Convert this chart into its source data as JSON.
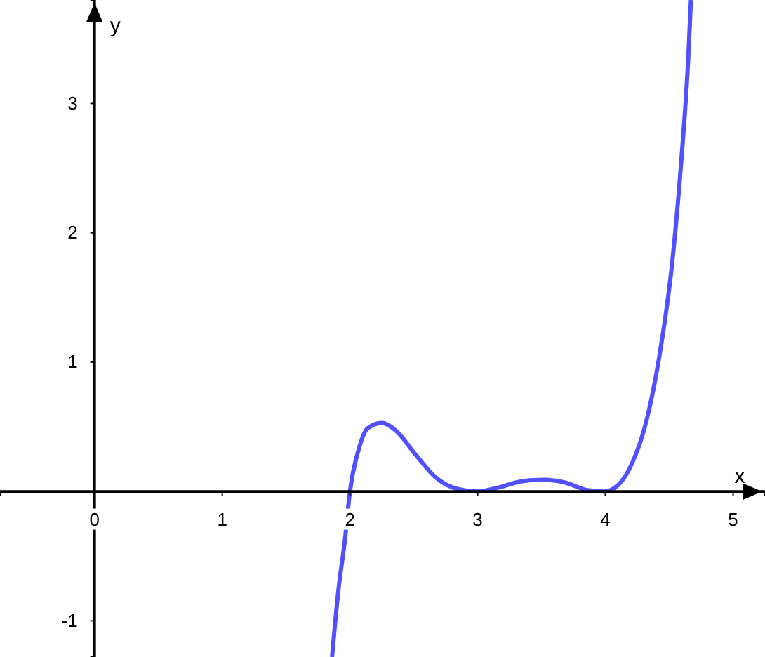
{
  "chart_data": {
    "type": "line",
    "xlabel": "x",
    "ylabel": "y",
    "xlim": [
      -0.74,
      5.25
    ],
    "ylim": [
      -1.28,
      3.8
    ],
    "xticks": [
      0,
      1,
      2,
      3,
      4,
      5
    ],
    "yticks": [
      -1,
      1,
      2,
      3
    ],
    "grid": false,
    "marker": "none",
    "line_style": "solid",
    "series": [
      {
        "color": "#5050ff",
        "x": [
          1.86,
          1.91,
          1.96,
          2.0,
          2.07,
          2.14,
          2.25,
          2.36,
          2.51,
          2.67,
          2.84,
          3.0,
          3.16,
          3.35,
          3.52,
          3.68,
          3.86,
          3.99,
          4.1,
          4.21,
          4.32,
          4.43,
          4.52,
          4.59,
          4.65,
          4.67
        ],
        "values": [
          -1.28,
          -0.76,
          -0.38,
          0,
          0.33,
          0.49,
          0.53,
          0.47,
          0.29,
          0.11,
          0.02,
          0,
          0.03,
          0.08,
          0.09,
          0.07,
          0.01,
          0,
          0.05,
          0.22,
          0.54,
          1.09,
          1.74,
          2.5,
          3.37,
          3.8
        ]
      }
    ]
  }
}
